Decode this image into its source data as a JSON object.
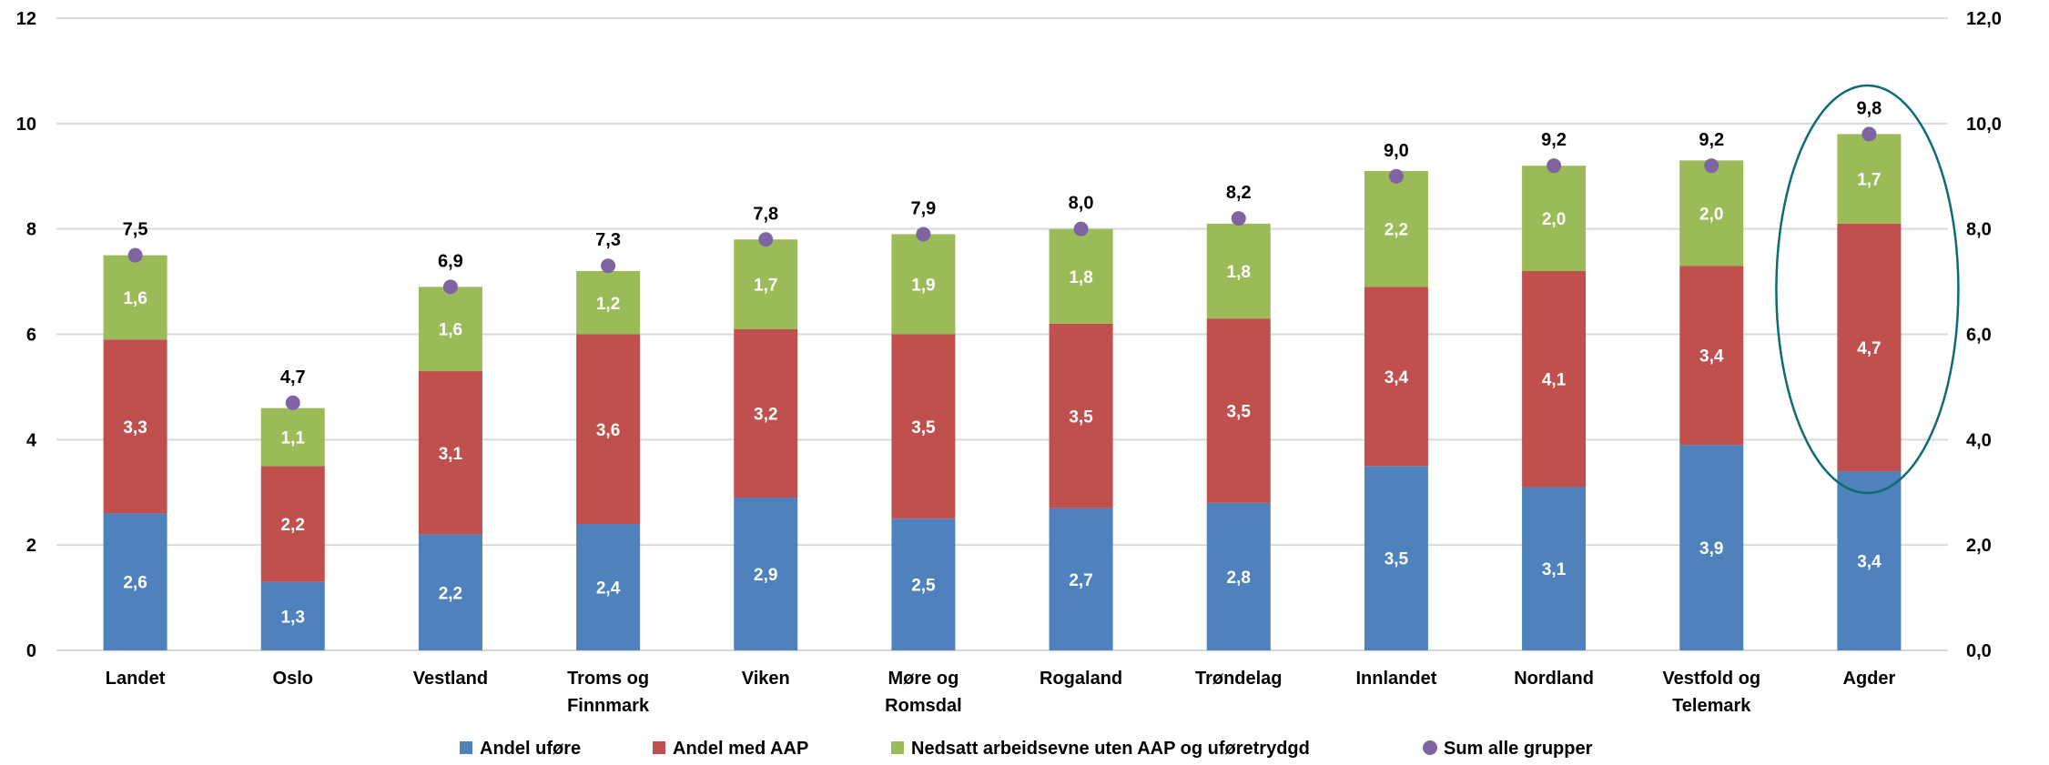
{
  "chart_data": {
    "type": "bar",
    "stacked": true,
    "categories": [
      [
        "Landet"
      ],
      [
        "Oslo"
      ],
      [
        "Vestland"
      ],
      [
        "Troms og",
        "Finnmark"
      ],
      [
        "Viken"
      ],
      [
        "Møre og",
        "Romsdal"
      ],
      [
        "Rogaland"
      ],
      [
        "Trøndelag"
      ],
      [
        "Innlandet"
      ],
      [
        "Nordland"
      ],
      [
        "Vestfold og",
        "Telemark"
      ],
      [
        "Agder"
      ]
    ],
    "series": [
      {
        "name": "Andel uføre",
        "color": "#4F81BD",
        "values": [
          2.6,
          1.3,
          2.2,
          2.4,
          2.9,
          2.5,
          2.7,
          2.8,
          3.5,
          3.1,
          3.9,
          3.4
        ],
        "labels": [
          "2,6",
          "1,3",
          "2,2",
          "2,4",
          "2,9",
          "2,5",
          "2,7",
          "2,8",
          "3,5",
          "3,1",
          "3,9",
          "3,4"
        ]
      },
      {
        "name": "Andel med AAP",
        "color": "#C0504D",
        "values": [
          3.3,
          2.2,
          3.1,
          3.6,
          3.2,
          3.5,
          3.5,
          3.5,
          3.4,
          4.1,
          3.4,
          4.7
        ],
        "labels": [
          "3,3",
          "2,2",
          "3,1",
          "3,6",
          "3,2",
          "3,5",
          "3,5",
          "3,5",
          "3,4",
          "4,1",
          "3,4",
          "4,7"
        ]
      },
      {
        "name": "Nedsatt arbeidsevne uten AAP og uføretrydgd",
        "color": "#9BBB59",
        "values": [
          1.6,
          1.1,
          1.6,
          1.2,
          1.7,
          1.9,
          1.8,
          1.8,
          2.2,
          2.0,
          2.0,
          1.7
        ],
        "labels": [
          "1,6",
          "1,1",
          "1,6",
          "1,2",
          "1,7",
          "1,9",
          "1,8",
          "1,8",
          "2,2",
          "2,0",
          "2,0",
          "1,7"
        ]
      }
    ],
    "sum_series": {
      "name": "Sum alle grupper",
      "color": "#8064A2",
      "values": [
        7.5,
        4.7,
        6.9,
        7.3,
        7.8,
        7.9,
        8.0,
        8.2,
        9.0,
        9.2,
        9.2,
        9.8
      ],
      "labels": [
        "7,5",
        "4,7",
        "6,9",
        "7,3",
        "7,8",
        "7,9",
        "8,0",
        "8,2",
        "9,0",
        "9,2",
        "9,2",
        "9,8"
      ]
    },
    "y_left_ticks": [
      "0",
      "2",
      "4",
      "6",
      "8",
      "10",
      "12"
    ],
    "y_right_ticks": [
      "0,0",
      "2,0",
      "4,0",
      "6,0",
      "8,0",
      "10,0",
      "12,0"
    ],
    "ylim": [
      0,
      12
    ],
    "grid": true,
    "legend_position": "bottom",
    "highlight": {
      "category": "Agder",
      "shape": "ellipse",
      "color": "#0E6B73"
    }
  }
}
